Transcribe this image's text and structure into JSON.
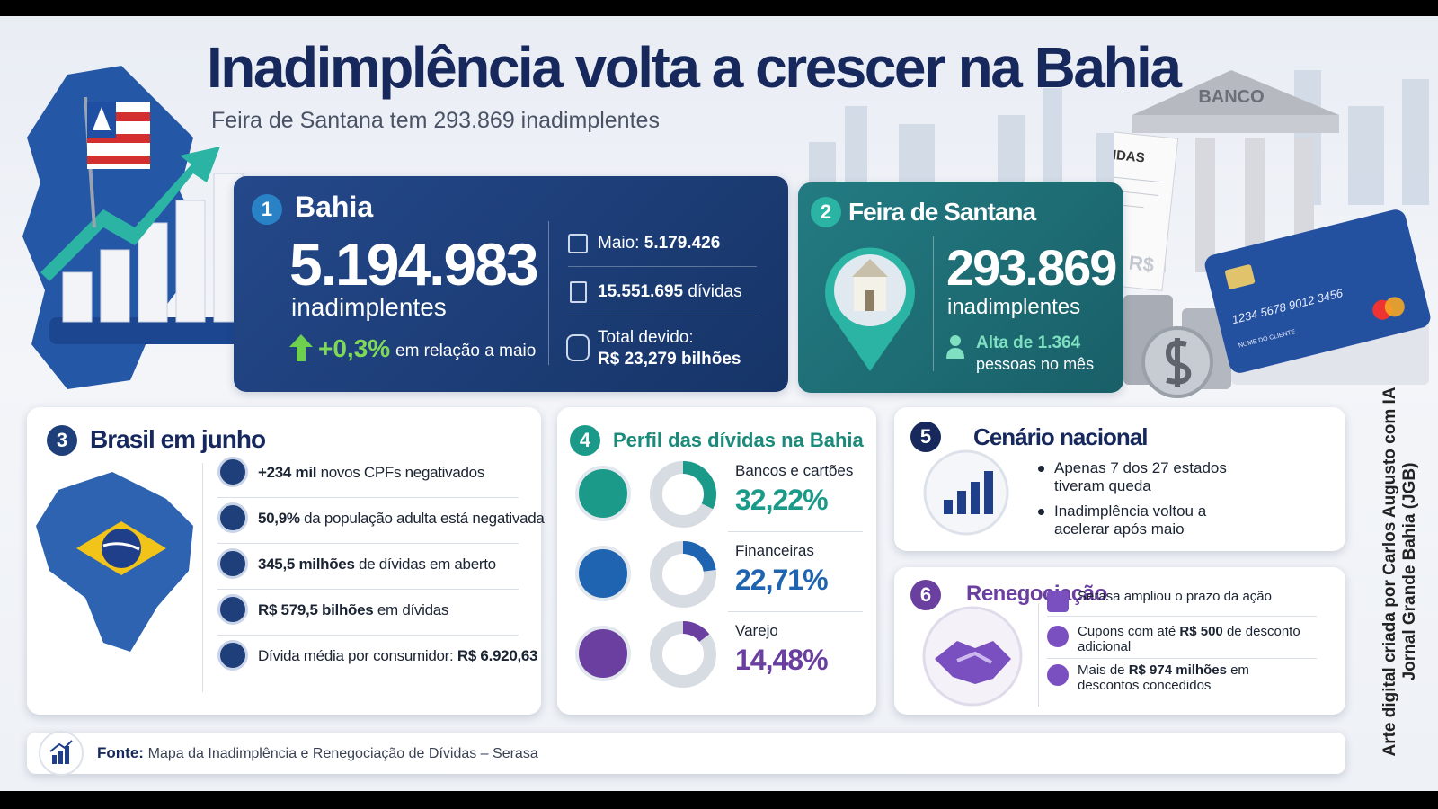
{
  "header": {
    "title": "Inadimplência volta a crescer na Bahia",
    "subtitle": "Feira de Santana tem 293.869 inadimplentes"
  },
  "illustration": {
    "bank": "BANCO",
    "debts": "DÍVIDAS",
    "currency": "R$",
    "card_number": "1234 5678 9012 3456",
    "card_holder": "NOME DO CLIENTE"
  },
  "bahia": {
    "number": "1",
    "title": "Bahia",
    "total": "5.194.983",
    "total_label": "inadimplentes",
    "change": "+0,3%",
    "change_label": "em relação a maio",
    "stats": [
      {
        "label": "Maio:",
        "value": "5.179.426"
      },
      {
        "value": "15.551.695",
        "label": "dívidas"
      },
      {
        "label": "Total devido:",
        "value": "R$ 23,279 bilhões"
      }
    ]
  },
  "feira": {
    "number": "2",
    "title": "Feira de Santana",
    "total": "293.869",
    "total_label": "inadimplentes",
    "change": "Alta de 1.364",
    "change_label": "pessoas no mês"
  },
  "brasil": {
    "number": "3",
    "title": "Brasil em junho",
    "items": [
      [
        "+234 mil",
        "novos CPFs negativados"
      ],
      [
        "50,9%",
        "da população adulta está negativada"
      ],
      [
        "345,5 milhões",
        "de dívidas em aberto"
      ],
      [
        "R$ 579,5 bilhões",
        "em dívidas"
      ],
      [
        "Dívida média por consumidor:",
        "R$ 6.920,63"
      ]
    ]
  },
  "profile": {
    "number": "4",
    "title": "Perfil das dívidas na Bahia",
    "scale_max": 100,
    "items": [
      {
        "name": "Bancos e cartões",
        "value": 32.22,
        "value_label": "32,22%",
        "color": "#1b9a8a"
      },
      {
        "name": "Financeiras",
        "value": 22.71,
        "value_label": "22,71%",
        "color": "#1f64b0"
      },
      {
        "name": "Varejo",
        "value": 14.48,
        "value_label": "14,48%",
        "color": "#6a3fa0"
      }
    ]
  },
  "cenario": {
    "number": "5",
    "title": "Cenário nacional",
    "bullets": [
      "Apenas 7 dos 27 estados tiveram queda",
      "Inadimplência voltou a acelerar após maio"
    ]
  },
  "renegociacao": {
    "number": "6",
    "title": "Renegociação",
    "items": [
      [
        "Serasa ampliou o prazo da ação"
      ],
      [
        "Cupons com até",
        "R$ 500",
        "de desconto adicional"
      ],
      [
        "Mais de",
        "R$ 974 milhões",
        "em descontos concedidos"
      ]
    ]
  },
  "footer": {
    "label": "Fonte:",
    "text": "Mapa da Inadimplência e Renegociação de Dívidas – Serasa"
  },
  "credit": [
    "Arte digital criada por Carlos Augusto com IA",
    "Jornal Grande Bahia (JGB)"
  ]
}
